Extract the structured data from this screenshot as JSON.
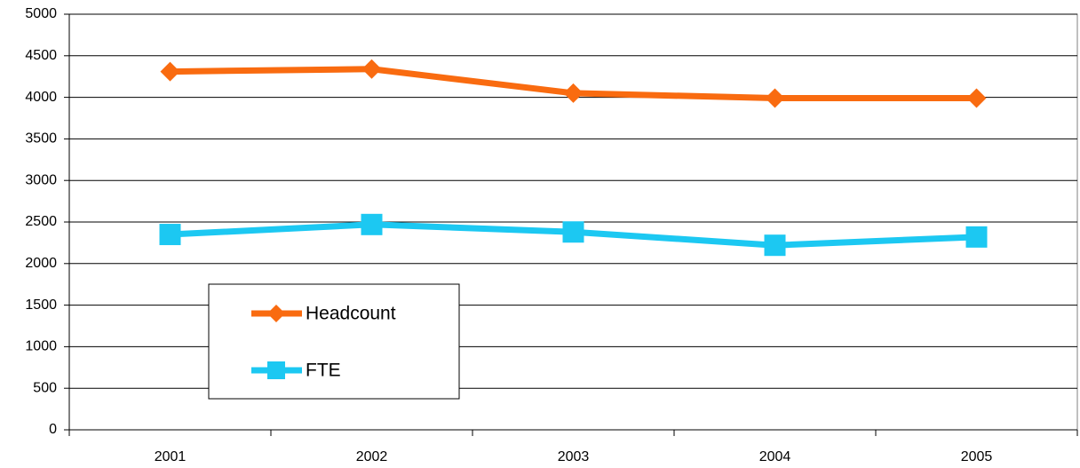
{
  "chart_data": {
    "type": "line",
    "categories": [
      "2001",
      "2002",
      "2003",
      "2004",
      "2005"
    ],
    "series": [
      {
        "name": "Headcount",
        "color": "#f96b10",
        "marker": "diamond",
        "values": [
          4310,
          4340,
          4050,
          3990,
          3990
        ]
      },
      {
        "name": "FTE",
        "color": "#1cc8f2",
        "marker": "square",
        "values": [
          2350,
          2470,
          2380,
          2220,
          2320
        ]
      }
    ],
    "ylim": [
      0,
      5000
    ],
    "yticks": [
      0,
      500,
      1000,
      1500,
      2000,
      2500,
      3000,
      3500,
      4000,
      4500,
      5000
    ],
    "grid": true
  }
}
